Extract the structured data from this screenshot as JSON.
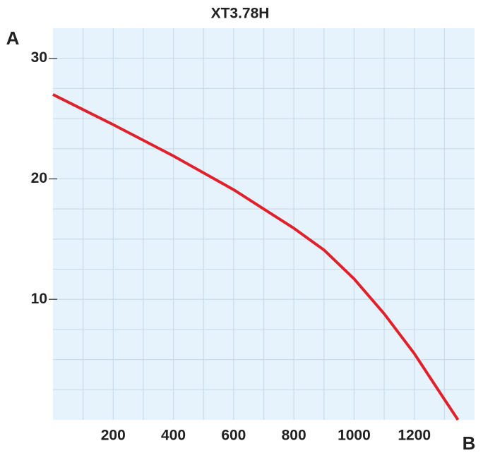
{
  "chart_data": {
    "type": "line",
    "title": "XT3.78H",
    "y_label": "A",
    "x_label": "B",
    "x": [
      0,
      200,
      400,
      600,
      800,
      900,
      1000,
      1100,
      1200,
      1300,
      1345
    ],
    "series": [
      {
        "name": "XT3.78H",
        "color": "#e0202a",
        "values": [
          27,
          24.5,
          21.9,
          19.1,
          15.9,
          14.1,
          11.7,
          8.8,
          5.5,
          1.7,
          0
        ]
      }
    ],
    "xlim": [
      0,
      1400
    ],
    "ylim": [
      0,
      32.5
    ],
    "xticks": [
      200,
      400,
      600,
      800,
      1000,
      1200
    ],
    "yticks": [
      10,
      20,
      30
    ],
    "xgrid": [
      100,
      200,
      300,
      400,
      500,
      600,
      700,
      800,
      900,
      1000,
      1100,
      1200,
      1300
    ],
    "ygrid": [
      2.5,
      5,
      7.5,
      10,
      12.5,
      15,
      17.5,
      20,
      22.5,
      25,
      27.5,
      30
    ],
    "grid": true,
    "background": "#e6f3fc"
  }
}
